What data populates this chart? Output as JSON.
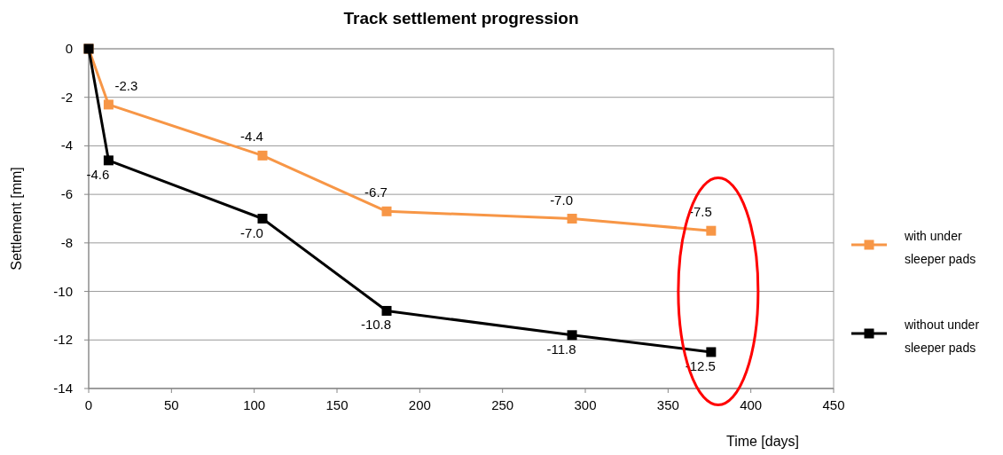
{
  "chart_data": {
    "type": "line",
    "title": "Track settlement progression",
    "xlabel": "Time [days]",
    "ylabel": "Settlement [mm]",
    "x": [
      0,
      12,
      105,
      180,
      292,
      376
    ],
    "series": [
      {
        "name": "with under sleeper pads",
        "color": "#f79646",
        "values": [
          0,
          -2.3,
          -4.4,
          -6.7,
          -7.0,
          -7.5
        ],
        "value_labels": [
          null,
          "-2.3",
          "-4.4",
          "-6.7",
          "-7.0",
          "-7.5"
        ]
      },
      {
        "name": "without under sleeper pads",
        "color": "#000000",
        "values": [
          0,
          -4.6,
          -7.0,
          -10.8,
          -11.8,
          -12.5
        ],
        "value_labels": [
          null,
          "-4.6",
          "-7.0",
          "-10.8",
          "-11.8",
          "-12.5"
        ]
      }
    ],
    "xlim": [
      0,
      450
    ],
    "xticks": [
      0,
      50,
      100,
      150,
      200,
      250,
      300,
      350,
      400,
      450
    ],
    "ylim": [
      -14,
      0
    ],
    "yticks": [
      0,
      -2,
      -4,
      -6,
      -8,
      -10,
      -12,
      -14
    ],
    "grid": "y",
    "legend": "right",
    "marker": "square",
    "line_style": "solid"
  }
}
